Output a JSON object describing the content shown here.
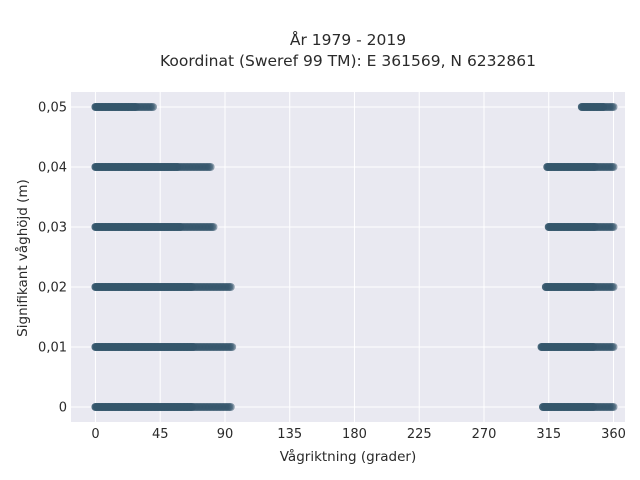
{
  "chart_data": {
    "type": "scatter",
    "title": [
      "År 1979 - 2019",
      "Koordinat (Sweref 99 TM): E 361569, N 6232861"
    ],
    "xlabel": "Vågriktning (grader)",
    "ylabel": "Signifikant våghöjd (m)",
    "xlim": [
      -17,
      368
    ],
    "ylim": [
      -0.0025,
      0.0525
    ],
    "xticks": [
      0,
      45,
      90,
      135,
      180,
      225,
      270,
      315,
      360
    ],
    "xtick_labels": [
      "0",
      "45",
      "90",
      "135",
      "180",
      "225",
      "270",
      "315",
      "360"
    ],
    "yticks": [
      0,
      0.01,
      0.02,
      0.03,
      0.04,
      0.05
    ],
    "ytick_labels": [
      "0",
      "0,01",
      "0,02",
      "0,03",
      "0,04",
      "0,05"
    ],
    "grid": true,
    "marker_color": "#34566b",
    "background": "#e9e9f1",
    "bands": [
      {
        "y": 0.05,
        "segments": [
          [
            0,
            40
          ],
          [
            338,
            360
          ]
        ]
      },
      {
        "y": 0.04,
        "segments": [
          [
            0,
            80
          ],
          [
            314,
            360
          ]
        ]
      },
      {
        "y": 0.03,
        "segments": [
          [
            0,
            82
          ],
          [
            315,
            360
          ]
        ]
      },
      {
        "y": 0.02,
        "segments": [
          [
            0,
            94
          ],
          [
            313,
            360
          ]
        ]
      },
      {
        "y": 0.01,
        "segments": [
          [
            0,
            95
          ],
          [
            310,
            360
          ]
        ]
      },
      {
        "y": 0.0,
        "segments": [
          [
            0,
            94
          ],
          [
            311,
            360
          ]
        ]
      }
    ]
  }
}
